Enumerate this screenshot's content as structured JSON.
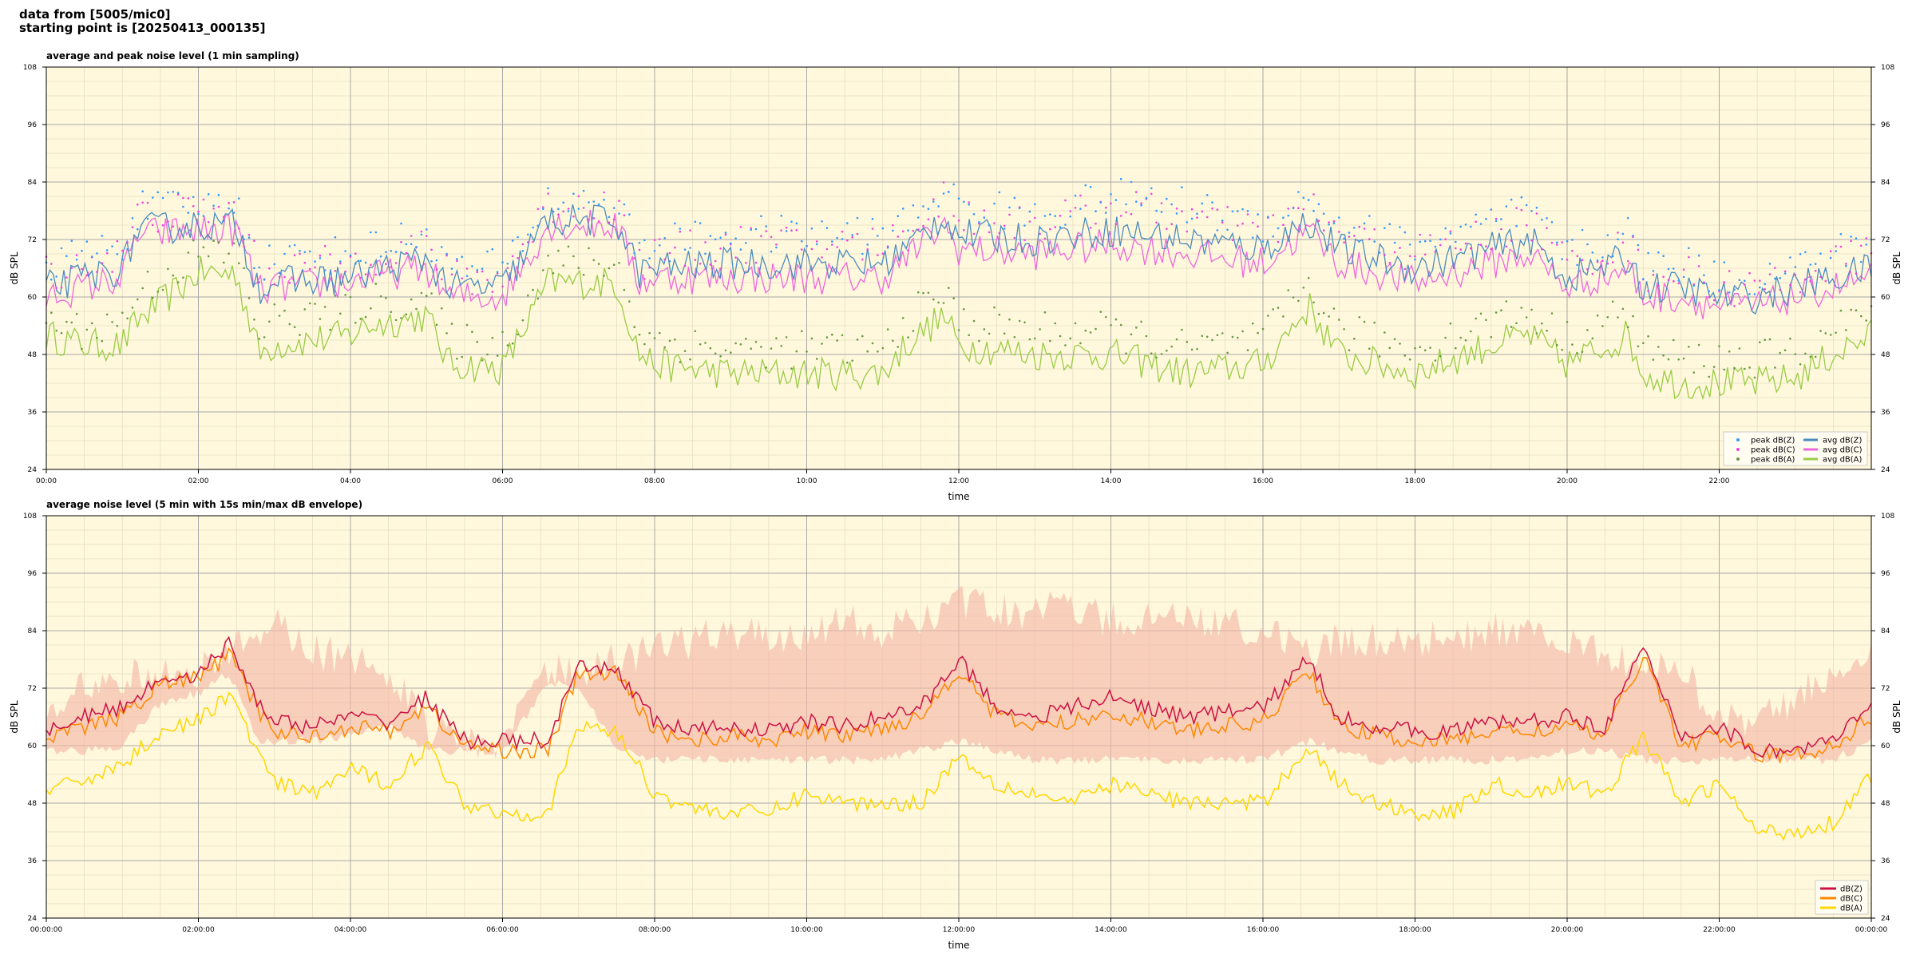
{
  "header": {
    "line1": "data from [5005/mic0]",
    "line2": "starting point is [20250413_000135]"
  },
  "colors": {
    "background": "#fff8dc",
    "peakZ": "#3399ff",
    "peakC": "#ee44dd",
    "peakA": "#669944",
    "avgZ": "#4c8bbf",
    "avgC": "#ee66dd",
    "avgA": "#99cc44",
    "dbZ": "#cc1144",
    "dbC": "#ff8800",
    "dbA": "#ffd700",
    "envelope": "#f4b8a8"
  },
  "chart_data": [
    {
      "type": "line",
      "title": "average and peak noise level (1 min sampling)",
      "xlabel": "time",
      "ylabel": "dB SPL",
      "xlim": [
        "00:00",
        "24:00"
      ],
      "ylim": [
        24,
        108
      ],
      "grid": true,
      "legend_position": "lower-right",
      "x_tick_labels": [
        "00:00",
        "02:00",
        "04:00",
        "06:00",
        "08:00",
        "10:00",
        "12:00",
        "14:00",
        "16:00",
        "18:00",
        "20:00",
        "22:00"
      ],
      "y_tick_labels": [
        "24",
        "36",
        "48",
        "60",
        "72",
        "84",
        "96",
        "108"
      ],
      "x_hours": [
        0,
        0.5,
        1,
        1.2,
        2,
        2.5,
        2.8,
        3,
        4,
        4.2,
        5,
        5.3,
        6,
        6.6,
        7,
        7.5,
        7.8,
        8,
        9,
        10,
        11,
        11.3,
        11.8,
        12,
        13,
        14,
        15,
        16,
        16.6,
        17,
        17.5,
        18,
        19,
        19.5,
        20,
        20.8,
        21,
        21.5,
        22,
        22.5,
        23,
        23.5,
        24
      ],
      "series": [
        {
          "name": "peak dB(Z)",
          "kind": "scatter",
          "values": [
            64,
            66,
            68,
            75,
            76,
            76,
            64,
            65,
            66,
            67,
            70,
            63,
            63,
            77,
            77,
            77,
            66,
            68,
            70,
            70,
            70,
            72,
            80,
            76,
            74,
            78,
            76,
            72,
            78,
            72,
            70,
            68,
            72,
            75,
            66,
            70,
            64,
            64,
            61,
            61,
            63,
            66,
            68
          ]
        },
        {
          "name": "peak dB(C)",
          "kind": "scatter",
          "values": [
            62,
            64,
            66,
            74,
            75,
            75,
            62,
            63,
            64,
            65,
            68,
            61,
            61,
            76,
            76,
            76,
            64,
            66,
            68,
            68,
            68,
            70,
            78,
            74,
            72,
            76,
            74,
            70,
            76,
            70,
            68,
            66,
            70,
            73,
            64,
            68,
            62,
            62,
            59,
            59,
            61,
            64,
            66
          ]
        },
        {
          "name": "peak dB(A)",
          "kind": "scatter",
          "values": [
            52,
            50,
            52,
            58,
            66,
            66,
            50,
            52,
            54,
            56,
            56,
            48,
            47,
            64,
            64,
            64,
            50,
            48,
            46,
            46,
            46,
            52,
            58,
            52,
            50,
            50,
            46,
            48,
            60,
            50,
            48,
            46,
            52,
            54,
            48,
            54,
            46,
            44,
            44,
            44,
            45,
            50,
            54
          ]
        },
        {
          "name": "avg dB(Z)",
          "kind": "line",
          "values": [
            62,
            64,
            66,
            74,
            75,
            75,
            62,
            63,
            64,
            65,
            68,
            62,
            62,
            76,
            76,
            76,
            65,
            66,
            67,
            67,
            67,
            70,
            77,
            73,
            72,
            74,
            72,
            70,
            76,
            70,
            68,
            66,
            70,
            72,
            64,
            68,
            62,
            62,
            60,
            60,
            62,
            64,
            66
          ]
        },
        {
          "name": "avg dB(C)",
          "kind": "line",
          "values": [
            60,
            62,
            64,
            73,
            74,
            74,
            61,
            62,
            63,
            64,
            66,
            60,
            60,
            75,
            75,
            75,
            63,
            64,
            64,
            64,
            64,
            68,
            75,
            70,
            69,
            71,
            69,
            67,
            74,
            67,
            65,
            63,
            67,
            69,
            62,
            66,
            60,
            60,
            58,
            58,
            60,
            62,
            64
          ]
        },
        {
          "name": "avg dB(A)",
          "kind": "line",
          "values": [
            52,
            50,
            50,
            55,
            65,
            65,
            48,
            50,
            52,
            54,
            56,
            46,
            45,
            63,
            63,
            63,
            48,
            46,
            44,
            44,
            44,
            50,
            56,
            50,
            48,
            48,
            44,
            46,
            58,
            48,
            46,
            44,
            50,
            52,
            46,
            52,
            44,
            42,
            42,
            42,
            43,
            48,
            52
          ]
        }
      ]
    },
    {
      "type": "line",
      "title": "average noise level (5 min with 15s min/max dB envelope)",
      "xlabel": "time",
      "ylabel": "dB SPL",
      "xlim": [
        "00:00:00",
        "00:00:00"
      ],
      "ylim": [
        24,
        108
      ],
      "grid": true,
      "legend_position": "lower-right",
      "x_tick_labels": [
        "00:00:00",
        "02:00:00",
        "04:00:00",
        "06:00:00",
        "08:00:00",
        "10:00:00",
        "12:00:00",
        "14:00:00",
        "16:00:00",
        "18:00:00",
        "20:00:00",
        "22:00:00",
        "00:00:00"
      ],
      "y_tick_labels": [
        "24",
        "36",
        "48",
        "60",
        "72",
        "84",
        "96",
        "108"
      ],
      "x_hours": [
        0,
        0.5,
        1,
        1.5,
        2,
        2.4,
        2.8,
        3,
        3.5,
        4,
        4.5,
        5,
        5.5,
        6,
        6.6,
        7,
        7.5,
        8,
        8.5,
        9,
        9.5,
        10,
        10.5,
        11,
        11.5,
        12,
        12.5,
        13,
        13.5,
        14,
        14.5,
        15,
        15.5,
        16,
        16.6,
        17,
        17.5,
        18,
        18.5,
        19,
        19.5,
        20,
        20.5,
        21,
        21.5,
        22,
        22.5,
        23,
        23.5,
        24
      ],
      "envelope_min": [
        58,
        58,
        59,
        68,
        70,
        74,
        60,
        60,
        60,
        61,
        63,
        58,
        58,
        58,
        72,
        72,
        58,
        56,
        56,
        56,
        56,
        56,
        56,
        56,
        58,
        60,
        58,
        56,
        56,
        56,
        56,
        56,
        56,
        56,
        60,
        58,
        56,
        56,
        56,
        56,
        56,
        58,
        58,
        56,
        56,
        56,
        56,
        56,
        56,
        60
      ],
      "envelope_max": [
        70,
        76,
        78,
        80,
        80,
        84,
        88,
        90,
        84,
        82,
        80,
        68,
        64,
        64,
        80,
        80,
        82,
        84,
        86,
        88,
        86,
        88,
        90,
        88,
        90,
        94,
        92,
        92,
        94,
        90,
        90,
        90,
        90,
        88,
        84,
        86,
        86,
        86,
        86,
        88,
        88,
        86,
        84,
        80,
        80,
        70,
        70,
        74,
        80,
        82
      ],
      "series": [
        {
          "name": "dB(Z)",
          "values": [
            63,
            66,
            68,
            74,
            75,
            81,
            69,
            65,
            64,
            66,
            65,
            70,
            61,
            61,
            61,
            76,
            76,
            65,
            63,
            64,
            63,
            65,
            64,
            66,
            68,
            78,
            68,
            66,
            68,
            70,
            68,
            66,
            67,
            68,
            78,
            66,
            64,
            63,
            63,
            65,
            65,
            66,
            64,
            80,
            62,
            64,
            59,
            59,
            61,
            68
          ]
        },
        {
          "name": "dB(C)",
          "values": [
            61,
            64,
            66,
            73,
            74,
            79,
            67,
            63,
            62,
            64,
            63,
            68,
            60,
            59,
            59,
            75,
            75,
            63,
            61,
            62,
            61,
            63,
            62,
            64,
            66,
            76,
            66,
            64,
            65,
            67,
            65,
            63,
            64,
            65,
            76,
            64,
            62,
            61,
            61,
            63,
            63,
            64,
            62,
            79,
            60,
            62,
            58,
            58,
            60,
            66
          ]
        },
        {
          "name": "dB(A)",
          "values": [
            50,
            53,
            56,
            63,
            65,
            71,
            58,
            52,
            50,
            55,
            52,
            60,
            48,
            46,
            46,
            64,
            63,
            50,
            47,
            46,
            46,
            50,
            48,
            48,
            48,
            58,
            52,
            50,
            48,
            52,
            50,
            48,
            48,
            48,
            60,
            52,
            48,
            46,
            46,
            52,
            50,
            52,
            50,
            62,
            48,
            52,
            42,
            42,
            44,
            54
          ]
        }
      ]
    }
  ]
}
